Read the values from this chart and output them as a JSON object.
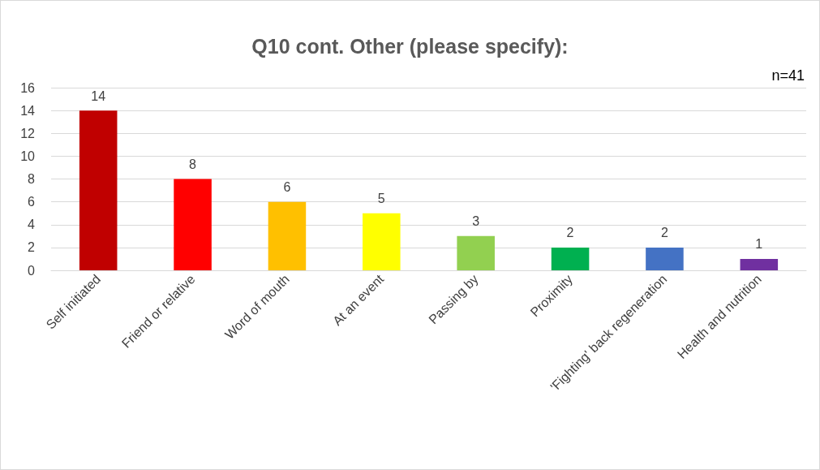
{
  "chart_data": {
    "type": "bar",
    "title": "Q10 cont. Other (please specify):",
    "categories": [
      "Self initiated",
      "Friend or relative",
      "Word of mouth",
      "At an event",
      "Passing by",
      "Proximity",
      "'Fighting' back regeneration",
      "Health and nutrition"
    ],
    "values": [
      14,
      8,
      6,
      5,
      3,
      2,
      2,
      1
    ],
    "colors": [
      "#c00000",
      "#ff0000",
      "#ffc000",
      "#ffff00",
      "#92d050",
      "#00b050",
      "#4472c4",
      "#7030a0"
    ],
    "ylim": [
      0,
      16
    ],
    "yticks": [
      0,
      2,
      4,
      6,
      8,
      10,
      12,
      14,
      16
    ],
    "grid": "y",
    "data_labels": true,
    "annotations": [
      "n=41"
    ]
  }
}
